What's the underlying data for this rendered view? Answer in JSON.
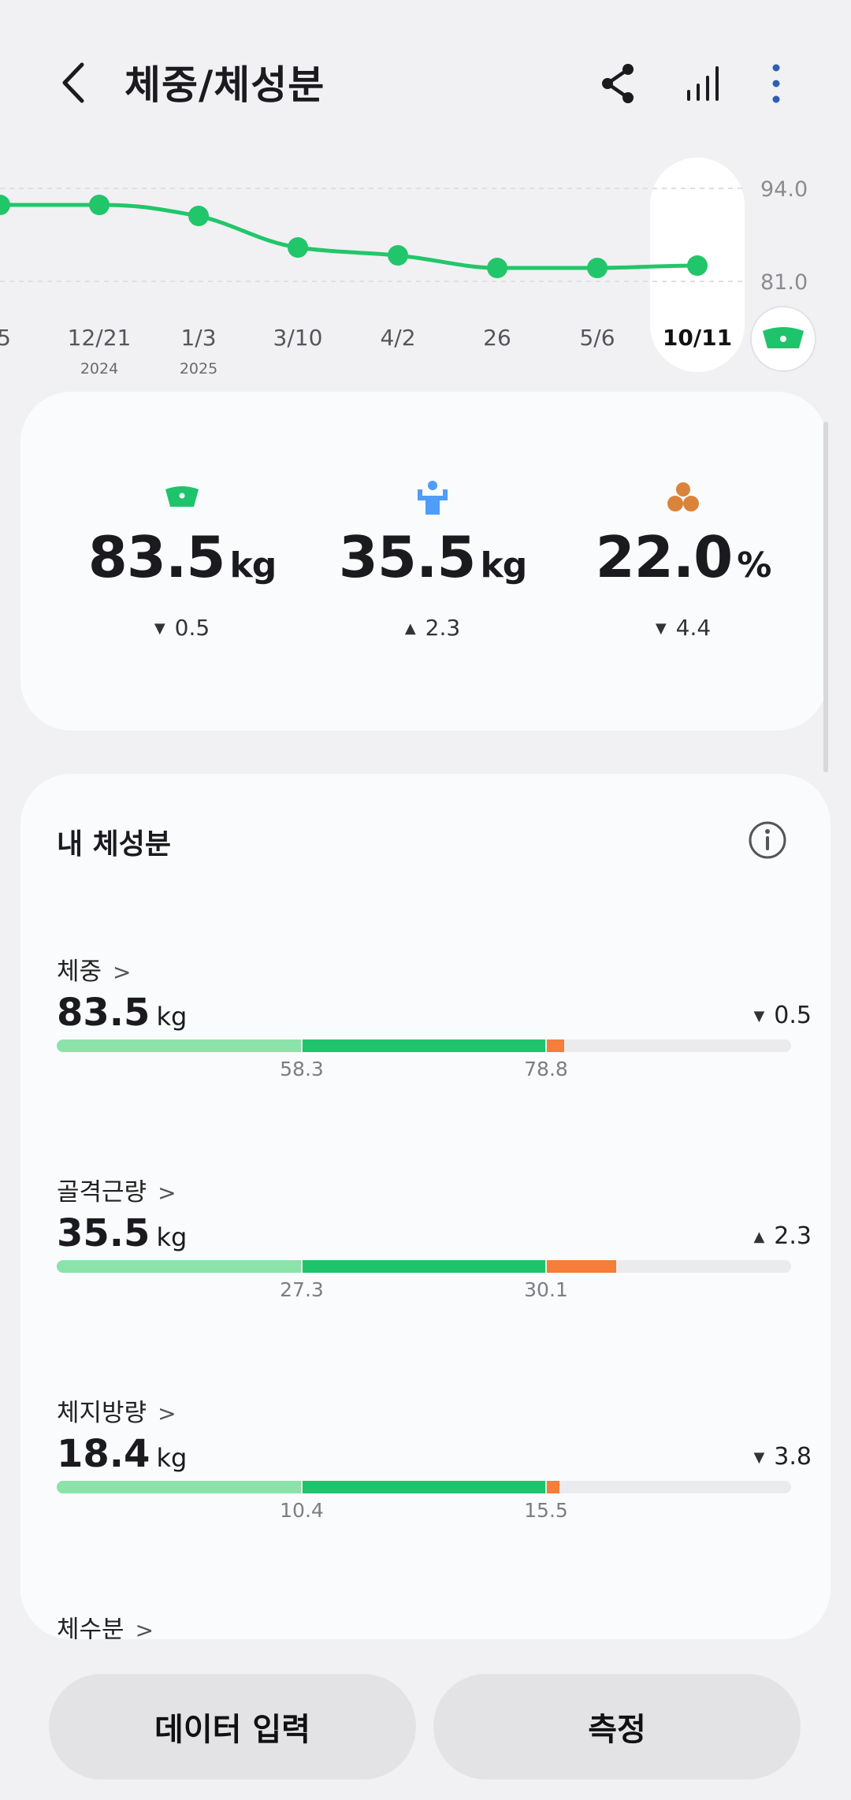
{
  "header": {
    "title": "체중/체성분",
    "back_icon": "back-arrow-icon",
    "share_icon": "share-icon",
    "chart_icon": "bar-chart-icon",
    "more_icon": "more-vertical-icon"
  },
  "trend_chart": {
    "y_max_label": "94.0",
    "y_min_label": "81.0",
    "x_labels": [
      "5",
      "12/21",
      "1/3",
      "3/10",
      "4/2",
      "26",
      "5/6",
      "10/11"
    ],
    "x_years": [
      "",
      "2024",
      "2025",
      "",
      "",
      "",
      "",
      ""
    ],
    "selected_label": "10/11",
    "line_color": "#22c66a",
    "scale_icon": "scale-icon"
  },
  "summary": {
    "weight": {
      "value": "83.5",
      "unit": "kg",
      "delta": "0.5",
      "direction": "down",
      "icon": "scale-icon",
      "color": "#22c66a"
    },
    "muscle": {
      "value": "35.5",
      "unit": "kg",
      "delta": "2.3",
      "direction": "up",
      "icon": "muscle-icon",
      "color": "#4f9df8"
    },
    "fat": {
      "value": "22.0",
      "unit": "%",
      "delta": "4.4",
      "direction": "down",
      "icon": "fat-cells-icon",
      "color": "#d9843a"
    }
  },
  "composition": {
    "title": "내 체성분",
    "info_icon": "info-icon",
    "rows": [
      {
        "label": "체중",
        "value": "83.5",
        "unit": "kg",
        "delta": "0.5",
        "direction": "down",
        "low": "58.3",
        "high": "78.8"
      },
      {
        "label": "골격근량",
        "value": "35.5",
        "unit": "kg",
        "delta": "2.3",
        "direction": "up",
        "low": "27.3",
        "high": "30.1"
      },
      {
        "label": "체지방량",
        "value": "18.4",
        "unit": "kg",
        "delta": "3.8",
        "direction": "down",
        "low": "10.4",
        "high": "15.5"
      },
      {
        "label": "체수분",
        "value": "",
        "unit": "",
        "delta": "",
        "direction": "",
        "low": "",
        "high": ""
      }
    ]
  },
  "buttons": {
    "data_input": "데이터 입력",
    "measure": "측정"
  },
  "colors": {
    "normal": "#1ec46b",
    "low": "#8be3a9",
    "high": "#f47e3a"
  }
}
